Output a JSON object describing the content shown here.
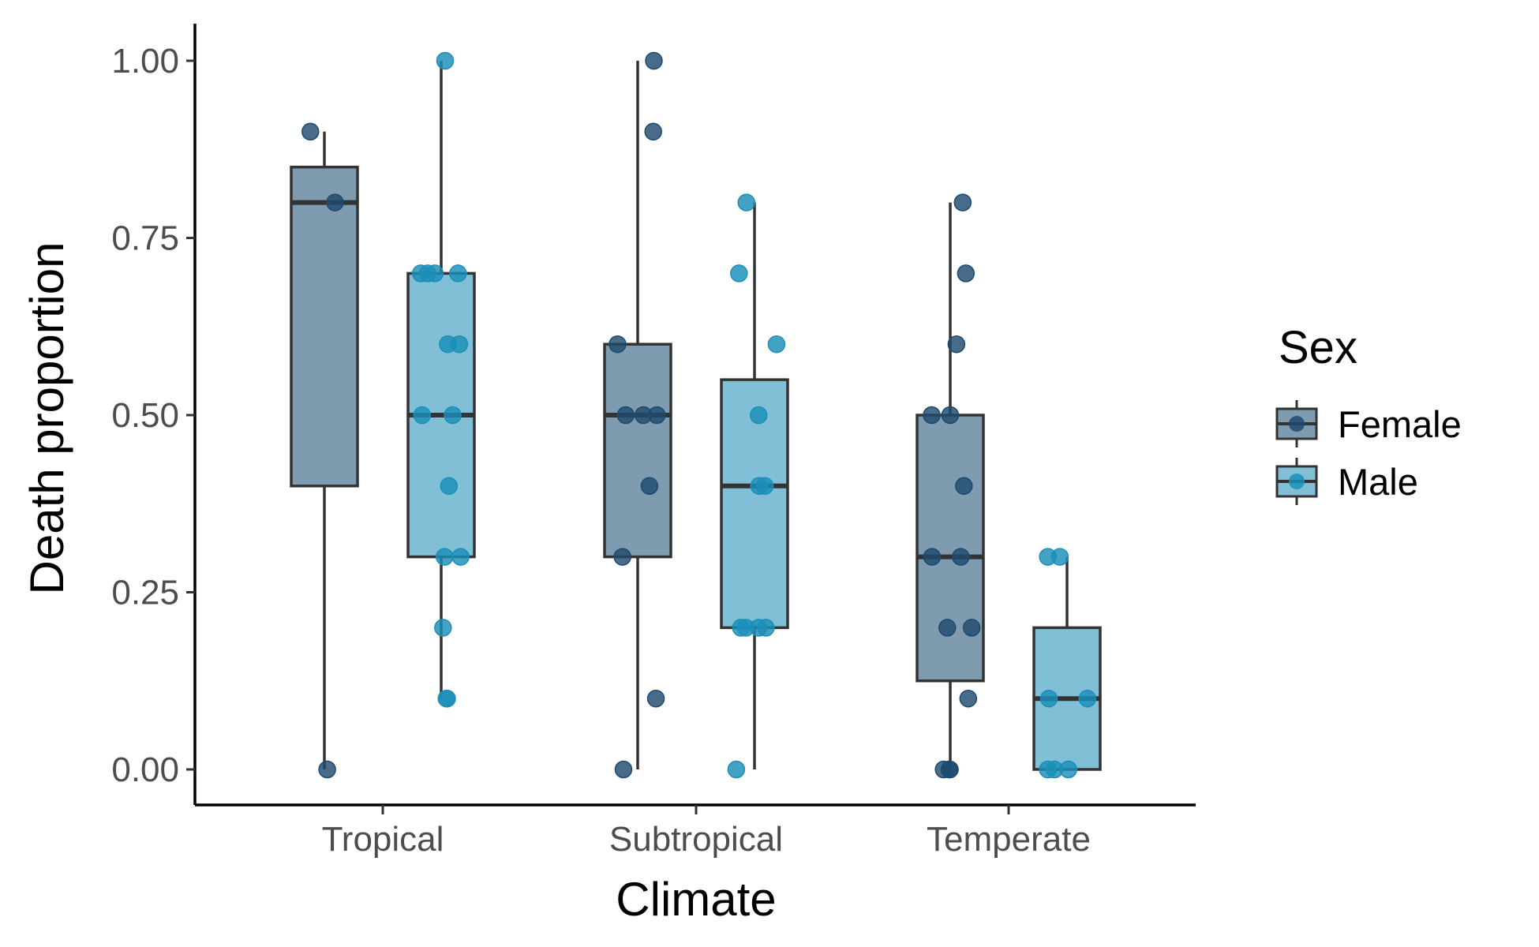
{
  "chart_data": {
    "type": "boxplot",
    "xlabel": "Climate",
    "ylabel": "Death proportion",
    "categories": [
      "Tropical",
      "Subtropical",
      "Temperate"
    ],
    "ylim": [
      -0.05,
      1.05
    ],
    "yticks": [
      0.0,
      0.25,
      0.5,
      0.75,
      1.0
    ],
    "ytick_labels": [
      "0.00",
      "0.25",
      "0.50",
      "0.75",
      "1.00"
    ],
    "grid": false,
    "legend": {
      "title": "Sex",
      "placement": "right",
      "entries": [
        "Female",
        "Male"
      ]
    },
    "series": [
      {
        "name": "Female",
        "color": "#1e4a6e",
        "fill": "#7f9bb0",
        "boxes": [
          {
            "category": "Tropical",
            "min": 0.0,
            "q1": 0.4,
            "median": 0.8,
            "q3": 0.85,
            "max": 0.9
          },
          {
            "category": "Subtropical",
            "min": 0.0,
            "q1": 0.3,
            "median": 0.5,
            "q3": 0.6,
            "max": 1.0
          },
          {
            "category": "Temperate",
            "min": 0.0,
            "q1": 0.125,
            "median": 0.3,
            "q3": 0.5,
            "max": 0.8
          }
        ],
        "points": [
          {
            "category": "Tropical",
            "values": [
              0.9,
              0.8,
              0.0
            ]
          },
          {
            "category": "Subtropical",
            "values": [
              1.0,
              0.9,
              0.6,
              0.5,
              0.5,
              0.5,
              0.4,
              0.3,
              0.1,
              0.0
            ]
          },
          {
            "category": "Temperate",
            "values": [
              0.8,
              0.7,
              0.6,
              0.5,
              0.5,
              0.4,
              0.3,
              0.3,
              0.2,
              0.2,
              0.1,
              0.0,
              0.0,
              0.0
            ]
          }
        ]
      },
      {
        "name": "Male",
        "color": "#1b8fb8",
        "fill": "#80bfd6",
        "boxes": [
          {
            "category": "Tropical",
            "min": 0.1,
            "q1": 0.3,
            "median": 0.5,
            "q3": 0.7,
            "max": 1.0
          },
          {
            "category": "Subtropical",
            "min": 0.0,
            "q1": 0.2,
            "median": 0.4,
            "q3": 0.55,
            "max": 0.8
          },
          {
            "category": "Temperate",
            "min": 0.0,
            "q1": 0.0,
            "median": 0.1,
            "q3": 0.2,
            "max": 0.3
          }
        ],
        "points": [
          {
            "category": "Tropical",
            "values": [
              1.0,
              0.7,
              0.7,
              0.7,
              0.7,
              0.6,
              0.6,
              0.5,
              0.5,
              0.4,
              0.3,
              0.3,
              0.2,
              0.1,
              0.1
            ]
          },
          {
            "category": "Subtropical",
            "values": [
              0.8,
              0.7,
              0.6,
              0.5,
              0.4,
              0.4,
              0.2,
              0.2,
              0.2,
              0.2,
              0.0
            ]
          },
          {
            "category": "Temperate",
            "values": [
              0.3,
              0.3,
              0.1,
              0.1,
              0.0,
              0.0,
              0.0
            ]
          }
        ]
      }
    ]
  }
}
